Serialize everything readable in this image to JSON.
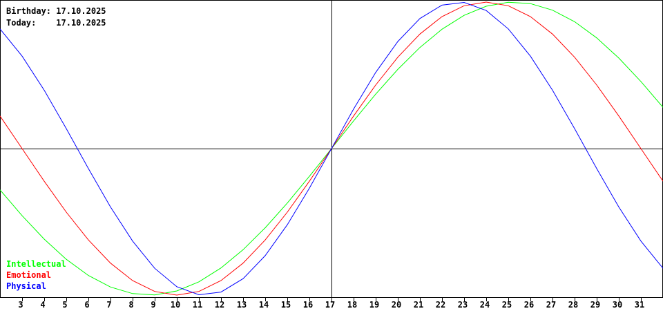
{
  "header": {
    "birthday_label": "Birthday:",
    "birthday_value": "17.10.2025",
    "today_label": "Today:",
    "today_value": "17.10.2025"
  },
  "chart_data": {
    "type": "line",
    "title": "",
    "xlabel": "",
    "ylabel": "",
    "x_ticks": [
      3,
      4,
      5,
      6,
      7,
      8,
      9,
      10,
      11,
      12,
      13,
      14,
      15,
      16,
      17,
      18,
      19,
      20,
      21,
      22,
      23,
      24,
      25,
      26,
      27,
      28,
      29,
      30,
      31
    ],
    "xlim": [
      2,
      32
    ],
    "ylim": [
      -1,
      1
    ],
    "today_day": 17,
    "legend_position": "bottom-left",
    "series": [
      {
        "name": "Intellectual",
        "color": "#00ff00",
        "period": 33,
        "zero_day": 17
      },
      {
        "name": "Emotional",
        "color": "#ff0000",
        "period": 28,
        "zero_day": 17
      },
      {
        "name": "Physical",
        "color": "#0000ff",
        "period": 23,
        "zero_day": 17
      }
    ]
  }
}
